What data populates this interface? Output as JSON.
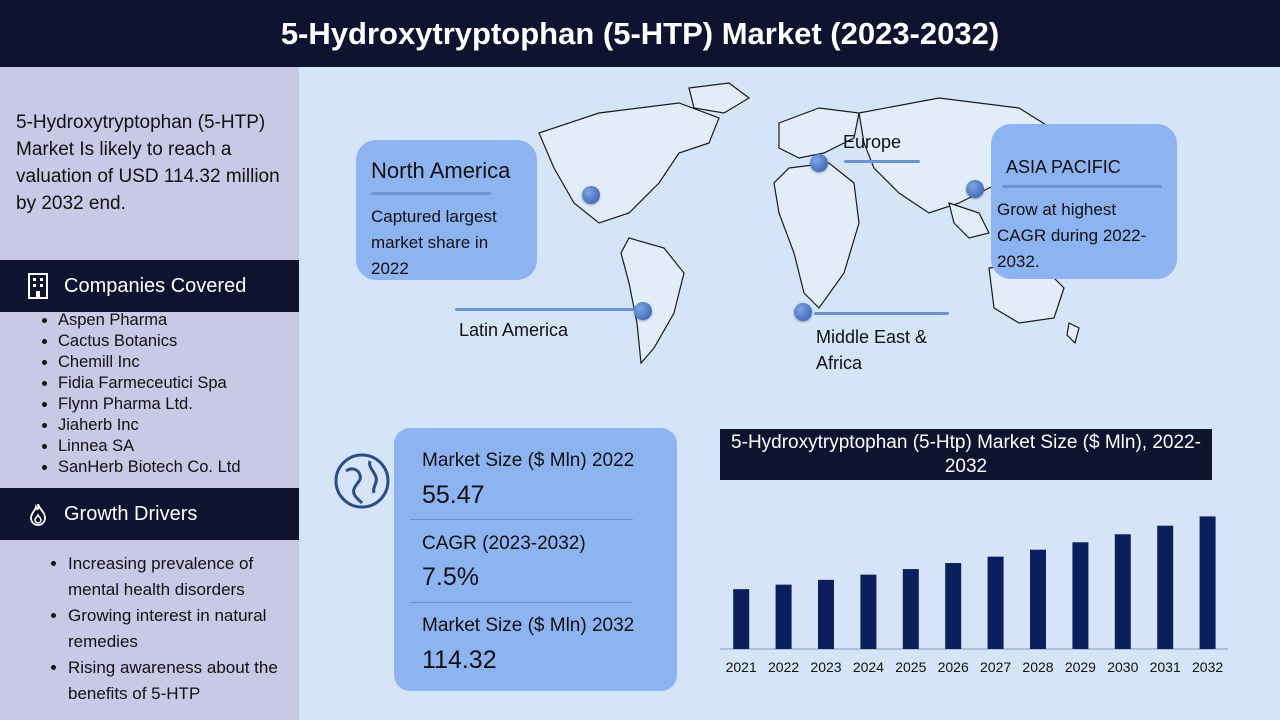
{
  "title": "5-Hydroxytryptophan (5-HTP) Market (2023-2032)",
  "sidebar": {
    "intro": "5-Hydroxytryptophan (5-HTP) Market Is likely to reach a valuation of USD 114.32 million by 2032 end.",
    "companies_heading": "Companies Covered",
    "companies": [
      "Aspen Pharma",
      "Cactus Botanics",
      "Chemill Inc",
      "Fidia Farmeceutici Spa",
      "Flynn Pharma Ltd.",
      "Jiaherb Inc",
      "Linnea SA",
      "SanHerb Biotech Co. Ltd"
    ],
    "drivers_heading": "Growth Drivers",
    "drivers": [
      "Increasing prevalence of mental health disorders",
      "Growing interest in natural remedies",
      "Rising awareness about the benefits of 5-HTP"
    ]
  },
  "map": {
    "north_america": {
      "name": "North America",
      "text": "Captured largest market share in 2022"
    },
    "europe": {
      "name": "Europe"
    },
    "asia_pacific": {
      "name": "ASIA PACIFIC",
      "text": "Grow at highest CAGR during 2022-2032."
    },
    "latin_america": {
      "name": "Latin America"
    },
    "mea": {
      "name": "Middle East & Africa"
    }
  },
  "stats": {
    "size_2022_label": "Market Size ($ Mln) 2022",
    "size_2022_value": "55.47",
    "cagr_label": "CAGR (2023-2032)",
    "cagr_value": "7.5%",
    "size_2032_label": "Market Size ($ Mln) 2032",
    "size_2032_value": "114.32"
  },
  "colors": {
    "dark": "#0e1430",
    "accent": "#8db3f1",
    "bar": "#0b1f5c"
  },
  "icons": {
    "companies": "building-icon",
    "drivers": "flame-icon",
    "globe": "globe-icon"
  },
  "chart_data": {
    "type": "bar",
    "title": "5-Hydroxytryptophan (5-Htp) Market Size ($ Mln), 2022-2032",
    "categories": [
      "2021",
      "2022",
      "2023",
      "2024",
      "2025",
      "2026",
      "2027",
      "2028",
      "2029",
      "2030",
      "2031",
      "2032"
    ],
    "values": [
      51.6,
      55.47,
      59.6,
      64.1,
      68.9,
      74.1,
      79.6,
      85.6,
      92.0,
      98.9,
      106.3,
      114.32
    ],
    "ylim": [
      0,
      125
    ],
    "grid": false,
    "legend": "none"
  }
}
